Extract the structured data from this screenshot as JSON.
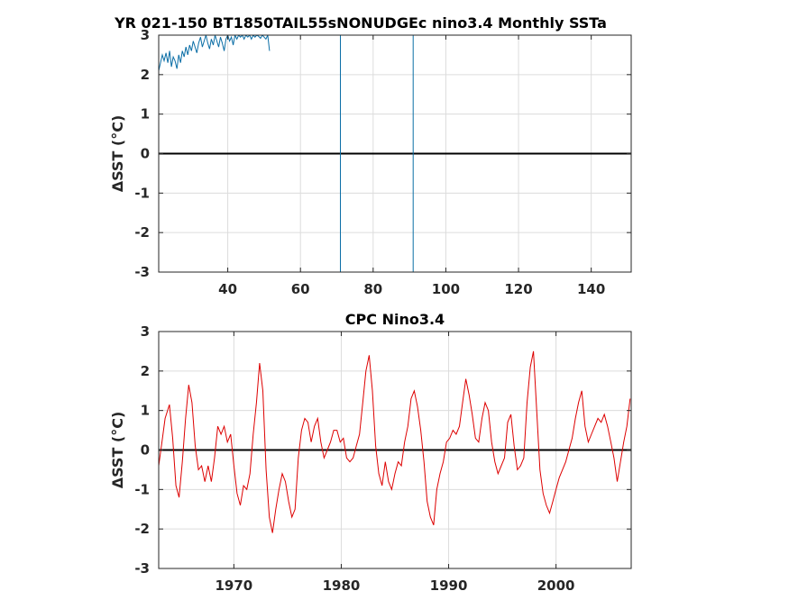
{
  "chart_data": [
    {
      "type": "line",
      "title": "YR 021-150 BT1850TAIL55sNONUDGEc nino3.4 Monthly SSTa",
      "ylabel": "ΔSST (°C)",
      "xlabel": "",
      "xlim": [
        21,
        151
      ],
      "ylim": [
        -3,
        3
      ],
      "x_ticks": [
        40,
        60,
        80,
        100,
        120,
        140
      ],
      "y_ticks": [
        -3,
        -2,
        -1,
        0,
        1,
        2,
        3
      ],
      "x_tick_labels": [
        "40",
        "60",
        "80",
        "100",
        "120",
        "140"
      ],
      "y_tick_labels": [
        "-3",
        "-2",
        "-1",
        "0",
        "1",
        "2",
        "3"
      ],
      "grid": true,
      "zero_line": 0,
      "series_color": "#0b6ea6",
      "series": [
        {
          "x": [
            21.0,
            21.5,
            22.0,
            22.5,
            23.0,
            23.5,
            24.0,
            24.5,
            25.0,
            25.5,
            26.0,
            26.5,
            27.0,
            27.5,
            28.0,
            28.5,
            29.0,
            29.5,
            30.0,
            30.5,
            31.0,
            31.5,
            32.0,
            32.5,
            33.0,
            33.5,
            34.0,
            34.5,
            35.0,
            35.5,
            36.0,
            36.5,
            37.0,
            37.5,
            38.0,
            38.5,
            39.0,
            39.5,
            40.0,
            40.5,
            41.0,
            41.5,
            42.0,
            42.5,
            43.0,
            43.5,
            44.0,
            44.5,
            45.0,
            45.5,
            46.0,
            46.5,
            47.0,
            47.5,
            48.0,
            48.5,
            49.0,
            49.5,
            50.0,
            50.5,
            51.0,
            51.5
          ],
          "y": [
            2.1,
            2.3,
            2.5,
            2.35,
            2.55,
            2.3,
            2.6,
            2.2,
            2.45,
            2.35,
            2.15,
            2.5,
            2.3,
            2.6,
            2.45,
            2.7,
            2.5,
            2.75,
            2.6,
            2.85,
            2.7,
            2.55,
            2.8,
            2.95,
            2.7,
            2.85,
            3.0,
            2.8,
            2.65,
            2.9,
            2.75,
            3.0,
            2.85,
            2.7,
            2.95,
            2.8,
            2.6,
            2.9,
            3.0,
            2.85,
            2.95,
            2.75,
            3.0,
            2.9,
            3.0,
            2.95,
            3.0,
            2.9,
            3.0,
            2.95,
            3.0,
            2.9,
            3.0,
            2.95,
            3.0,
            2.97,
            2.92,
            3.0,
            2.95,
            2.9,
            3.0,
            2.6
          ]
        },
        {
          "x": [
            71,
            71
          ],
          "y": [
            -3,
            3
          ]
        },
        {
          "x": [
            91,
            91
          ],
          "y": [
            -3,
            3
          ]
        }
      ]
    },
    {
      "type": "line",
      "title": "CPC Nino3.4",
      "ylabel": "ΔSST (°C)",
      "xlabel": "",
      "xlim": [
        1963,
        2007
      ],
      "ylim": [
        -3,
        3
      ],
      "x_ticks": [
        1970,
        1980,
        1990,
        2000
      ],
      "y_ticks": [
        -3,
        -2,
        -1,
        0,
        1,
        2,
        3
      ],
      "x_tick_labels": [
        "1970",
        "1980",
        "1990",
        "2000"
      ],
      "y_tick_labels": [
        "-3",
        "-2",
        "-1",
        "0",
        "1",
        "2",
        "3"
      ],
      "grid": true,
      "zero_line": 0,
      "series_color": "#dd0000",
      "series": [
        {
          "x": [
            1963.0,
            1963.3,
            1963.6,
            1964.0,
            1964.3,
            1964.6,
            1964.9,
            1965.2,
            1965.5,
            1965.8,
            1966.1,
            1966.4,
            1966.7,
            1967.0,
            1967.3,
            1967.6,
            1967.9,
            1968.2,
            1968.5,
            1968.8,
            1969.1,
            1969.4,
            1969.7,
            1970.0,
            1970.3,
            1970.6,
            1970.9,
            1971.2,
            1971.5,
            1971.8,
            1972.1,
            1972.4,
            1972.7,
            1973.0,
            1973.3,
            1973.6,
            1973.9,
            1974.2,
            1974.5,
            1974.8,
            1975.1,
            1975.4,
            1975.7,
            1976.0,
            1976.3,
            1976.6,
            1976.9,
            1977.2,
            1977.5,
            1977.8,
            1978.1,
            1978.4,
            1978.7,
            1979.0,
            1979.3,
            1979.6,
            1979.9,
            1980.2,
            1980.5,
            1980.8,
            1981.1,
            1981.4,
            1981.7,
            1982.0,
            1982.3,
            1982.6,
            1982.9,
            1983.2,
            1983.5,
            1983.8,
            1984.1,
            1984.4,
            1984.7,
            1985.0,
            1985.3,
            1985.6,
            1985.9,
            1986.2,
            1986.5,
            1986.8,
            1987.1,
            1987.4,
            1987.7,
            1988.0,
            1988.3,
            1988.6,
            1988.9,
            1989.2,
            1989.5,
            1989.8,
            1990.1,
            1990.4,
            1990.7,
            1991.0,
            1991.3,
            1991.6,
            1991.9,
            1992.2,
            1992.5,
            1992.8,
            1993.1,
            1993.4,
            1993.7,
            1994.0,
            1994.3,
            1994.6,
            1994.9,
            1995.2,
            1995.5,
            1995.8,
            1996.1,
            1996.4,
            1996.7,
            1997.0,
            1997.3,
            1997.6,
            1997.9,
            1998.2,
            1998.5,
            1998.8,
            1999.1,
            1999.4,
            1999.7,
            2000.0,
            2000.3,
            2000.6,
            2000.9,
            2001.2,
            2001.5,
            2001.8,
            2002.1,
            2002.4,
            2002.7,
            2003.0,
            2003.3,
            2003.6,
            2003.9,
            2004.2,
            2004.5,
            2004.8,
            2005.1,
            2005.4,
            2005.7,
            2006.0,
            2006.3,
            2006.6,
            2006.9
          ],
          "y": [
            -0.4,
            0.2,
            0.8,
            1.15,
            0.3,
            -0.9,
            -1.2,
            -0.3,
            0.8,
            1.65,
            1.2,
            0.1,
            -0.5,
            -0.4,
            -0.8,
            -0.4,
            -0.8,
            -0.2,
            0.6,
            0.4,
            0.6,
            0.2,
            0.4,
            -0.4,
            -1.1,
            -1.4,
            -0.9,
            -1.0,
            -0.6,
            0.4,
            1.2,
            2.2,
            1.5,
            -0.5,
            -1.7,
            -2.1,
            -1.5,
            -1.0,
            -0.6,
            -0.8,
            -1.3,
            -1.7,
            -1.5,
            -0.2,
            0.5,
            0.8,
            0.7,
            0.2,
            0.6,
            0.8,
            0.2,
            -0.2,
            0.0,
            0.2,
            0.5,
            0.5,
            0.2,
            0.3,
            -0.2,
            -0.3,
            -0.2,
            0.1,
            0.4,
            1.2,
            2.0,
            2.4,
            1.5,
            0.1,
            -0.6,
            -0.9,
            -0.3,
            -0.8,
            -1.0,
            -0.6,
            -0.3,
            -0.4,
            0.2,
            0.6,
            1.3,
            1.5,
            1.1,
            0.5,
            -0.3,
            -1.3,
            -1.7,
            -1.9,
            -1.0,
            -0.6,
            -0.3,
            0.2,
            0.3,
            0.5,
            0.4,
            0.6,
            1.2,
            1.8,
            1.4,
            0.9,
            0.3,
            0.2,
            0.8,
            1.2,
            1.0,
            0.2,
            -0.3,
            -0.6,
            -0.4,
            -0.2,
            0.7,
            0.9,
            0.1,
            -0.5,
            -0.4,
            -0.2,
            1.2,
            2.1,
            2.5,
            1.0,
            -0.5,
            -1.1,
            -1.4,
            -1.6,
            -1.3,
            -1.0,
            -0.7,
            -0.5,
            -0.3,
            0.0,
            0.3,
            0.8,
            1.2,
            1.5,
            0.6,
            0.2,
            0.4,
            0.6,
            0.8,
            0.7,
            0.9,
            0.6,
            0.2,
            -0.2,
            -0.8,
            -0.3,
            0.2,
            0.6,
            1.3
          ]
        }
      ]
    }
  ]
}
